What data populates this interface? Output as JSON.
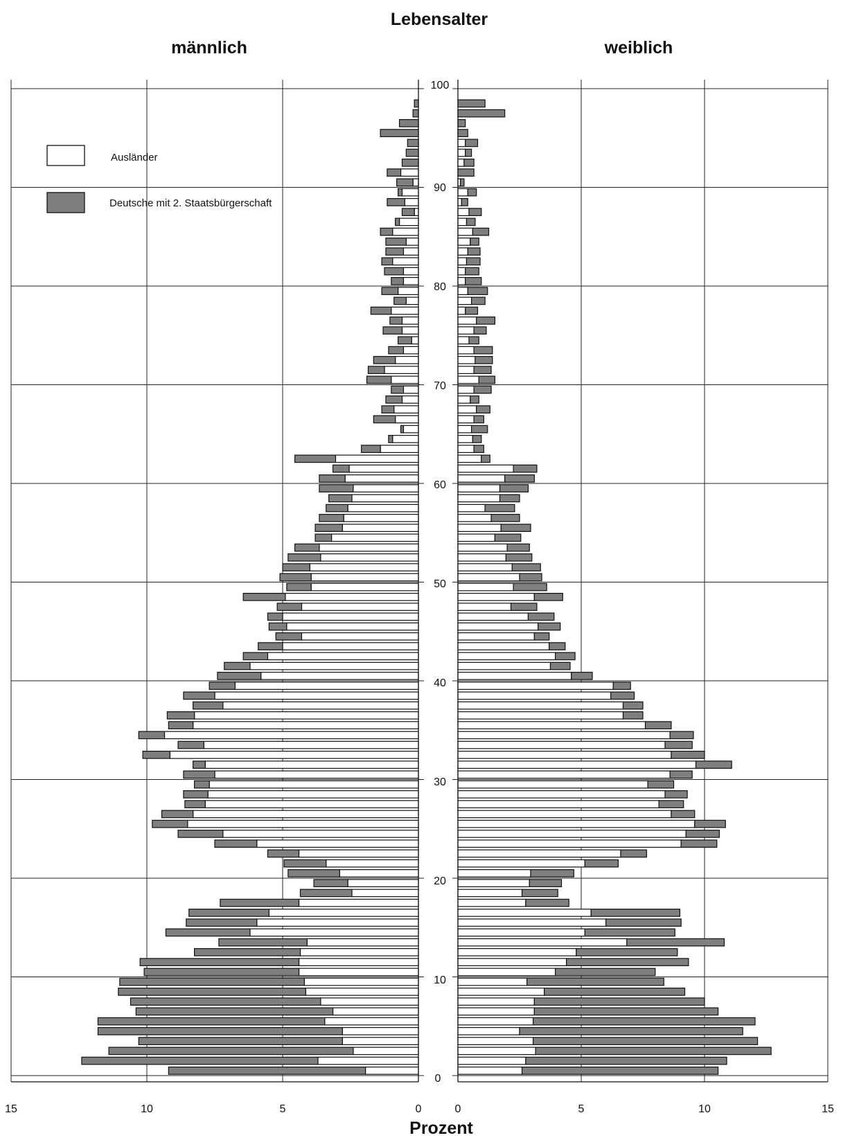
{
  "chart_data": {
    "type": "bar",
    "title": "Lebensalter",
    "xlabel": "Prozent",
    "left_panel_label": "männlich",
    "right_panel_label": "weiblich",
    "x_ticks_male": [
      "15",
      "10",
      "5",
      "0"
    ],
    "x_ticks_female": [
      "0",
      "5",
      "10",
      "15"
    ],
    "xlim": [
      0,
      15
    ],
    "age_ticks": [
      "0",
      "10",
      "20",
      "30",
      "40",
      "50",
      "60",
      "70",
      "80",
      "90",
      "100"
    ],
    "age_range": [
      0,
      100
    ],
    "grid": true,
    "legend": {
      "placement": "top-left",
      "entries": [
        {
          "label": "Ausländer",
          "color": "#ffffff"
        },
        {
          "label": "Deutsche mit 2. Staatsbürgerschaft",
          "color": "#7f7f7f"
        }
      ]
    },
    "colors": {
      "auslaender": "#ffffff",
      "deutsche": "#7f7f7f"
    },
    "ages": [
      0,
      1,
      2,
      3,
      4,
      5,
      6,
      7,
      8,
      9,
      10,
      11,
      12,
      13,
      14,
      15,
      16,
      17,
      18,
      19,
      20,
      21,
      22,
      23,
      24,
      25,
      26,
      27,
      28,
      29,
      30,
      31,
      32,
      33,
      34,
      35,
      36,
      37,
      38,
      39,
      40,
      41,
      42,
      43,
      44,
      45,
      46,
      47,
      48,
      49,
      50,
      51,
      52,
      53,
      54,
      55,
      56,
      57,
      58,
      59,
      60,
      61,
      62,
      63,
      64,
      65,
      66,
      67,
      68,
      69,
      70,
      71,
      72,
      73,
      74,
      75,
      76,
      77,
      78,
      79,
      80,
      81,
      82,
      83,
      84,
      85,
      86,
      87,
      88,
      89,
      90,
      91,
      92,
      93,
      94,
      95,
      96,
      97,
      98
    ],
    "series": [
      {
        "name": "Ausländer",
        "panel": "männlich",
        "values": [
          1.95,
          3.7,
          2.4,
          2.8,
          2.8,
          3.45,
          3.15,
          3.6,
          4.15,
          4.2,
          4.4,
          4.4,
          4.35,
          4.1,
          6.2,
          5.95,
          5.5,
          4.4,
          2.45,
          2.6,
          2.9,
          3.4,
          4.4,
          5.95,
          7.2,
          8.5,
          8.3,
          7.85,
          7.75,
          7.7,
          7.5,
          7.85,
          9.15,
          7.9,
          9.35,
          8.3,
          8.25,
          7.2,
          7.5,
          6.75,
          5.8,
          6.2,
          5.55,
          5.0,
          4.3,
          4.85,
          5.0,
          4.3,
          4.9,
          3.95,
          3.95,
          4.0,
          3.6,
          3.65,
          3.2,
          2.8,
          2.75,
          2.6,
          2.45,
          2.4,
          2.7,
          2.55,
          3.05,
          1.4,
          0.95,
          0.55,
          0.85,
          0.9,
          0.6,
          0.55,
          1.0,
          1.25,
          0.85,
          0.55,
          0.25,
          0.6,
          0.6,
          1.0,
          0.45,
          0.75,
          0.55,
          0.55,
          0.95,
          0.55,
          0.45,
          0.95,
          0.7,
          0.15,
          0.5,
          0.6,
          0.2,
          0.65,
          0.0,
          0.0,
          0.0,
          0.0,
          0.0,
          0.0,
          0.0
        ]
      },
      {
        "name": "Deutsche mit 2. Staatsbürgerschaft",
        "panel": "männlich",
        "values": [
          7.25,
          8.7,
          9.0,
          7.5,
          9.0,
          8.35,
          7.25,
          7.0,
          6.9,
          6.8,
          5.7,
          5.85,
          3.9,
          3.25,
          3.1,
          2.6,
          2.95,
          2.9,
          1.9,
          1.25,
          1.9,
          1.55,
          1.15,
          1.55,
          1.65,
          1.3,
          1.15,
          0.75,
          0.9,
          0.55,
          1.15,
          0.45,
          1.0,
          0.95,
          0.95,
          0.9,
          1.0,
          1.1,
          1.15,
          0.95,
          1.6,
          0.95,
          0.9,
          0.9,
          0.95,
          0.65,
          0.55,
          0.9,
          1.55,
          0.9,
          1.15,
          1.0,
          1.2,
          0.9,
          0.6,
          1.0,
          0.9,
          0.8,
          0.85,
          1.25,
          0.95,
          0.6,
          1.5,
          0.7,
          0.15,
          0.1,
          0.8,
          0.45,
          0.6,
          0.45,
          0.9,
          0.6,
          0.8,
          0.55,
          0.5,
          0.7,
          0.45,
          0.75,
          0.45,
          0.6,
          0.45,
          0.7,
          0.4,
          0.65,
          0.75,
          0.45,
          0.15,
          0.45,
          0.65,
          0.15,
          0.6,
          0.5,
          0.6,
          0.45,
          0.4,
          1.4,
          0.7,
          0.2,
          0.15
        ]
      },
      {
        "name": "Ausländer",
        "panel": "weiblich",
        "values": [
          2.6,
          2.75,
          3.15,
          3.05,
          2.5,
          3.05,
          3.1,
          3.1,
          3.5,
          2.8,
          3.95,
          4.4,
          4.8,
          6.85,
          5.15,
          6.0,
          5.4,
          2.75,
          2.6,
          2.9,
          2.95,
          5.15,
          6.6,
          9.05,
          9.25,
          9.6,
          8.65,
          8.15,
          8.4,
          7.7,
          8.6,
          9.65,
          8.65,
          8.4,
          8.6,
          7.6,
          6.7,
          6.7,
          6.2,
          6.3,
          4.6,
          3.75,
          3.95,
          3.7,
          3.1,
          3.25,
          2.85,
          2.15,
          3.1,
          2.25,
          2.5,
          2.2,
          1.95,
          2.0,
          1.5,
          1.75,
          1.35,
          1.1,
          1.7,
          1.7,
          1.9,
          2.25,
          0.95,
          0.65,
          0.6,
          0.55,
          0.65,
          0.75,
          0.5,
          0.65,
          0.85,
          0.65,
          0.7,
          0.65,
          0.45,
          0.65,
          0.75,
          0.3,
          0.55,
          0.4,
          0.3,
          0.3,
          0.35,
          0.4,
          0.5,
          0.6,
          0.35,
          0.45,
          0.15,
          0.4,
          0.1,
          0.0,
          0.25,
          0.3,
          0.3,
          0.0,
          0.0,
          0.0,
          0.0
        ]
      },
      {
        "name": "Deutsche mit 2. Staatsbürgerschaft",
        "panel": "weiblich",
        "values": [
          7.95,
          8.15,
          9.55,
          9.1,
          9.05,
          9.0,
          7.45,
          6.9,
          5.7,
          5.55,
          4.05,
          4.95,
          4.1,
          3.95,
          3.65,
          3.05,
          3.6,
          1.75,
          1.45,
          1.3,
          1.75,
          1.35,
          1.05,
          1.45,
          1.35,
          1.25,
          0.95,
          1.0,
          0.9,
          1.05,
          0.9,
          1.45,
          1.35,
          1.1,
          0.95,
          1.05,
          0.8,
          0.8,
          0.95,
          0.7,
          0.85,
          0.8,
          0.8,
          0.65,
          0.6,
          0.9,
          1.05,
          1.05,
          1.15,
          1.35,
          0.9,
          1.15,
          1.05,
          0.9,
          1.05,
          1.2,
          1.15,
          1.2,
          0.8,
          1.15,
          1.2,
          0.95,
          0.35,
          0.4,
          0.35,
          0.65,
          0.4,
          0.55,
          0.35,
          0.7,
          0.65,
          0.7,
          0.7,
          0.75,
          0.4,
          0.5,
          0.75,
          0.5,
          0.55,
          0.8,
          0.65,
          0.55,
          0.55,
          0.5,
          0.35,
          0.65,
          0.35,
          0.5,
          0.25,
          0.35,
          0.15,
          0.65,
          0.4,
          0.25,
          0.5,
          0.4,
          0.3,
          1.9,
          1.1
        ]
      }
    ]
  }
}
